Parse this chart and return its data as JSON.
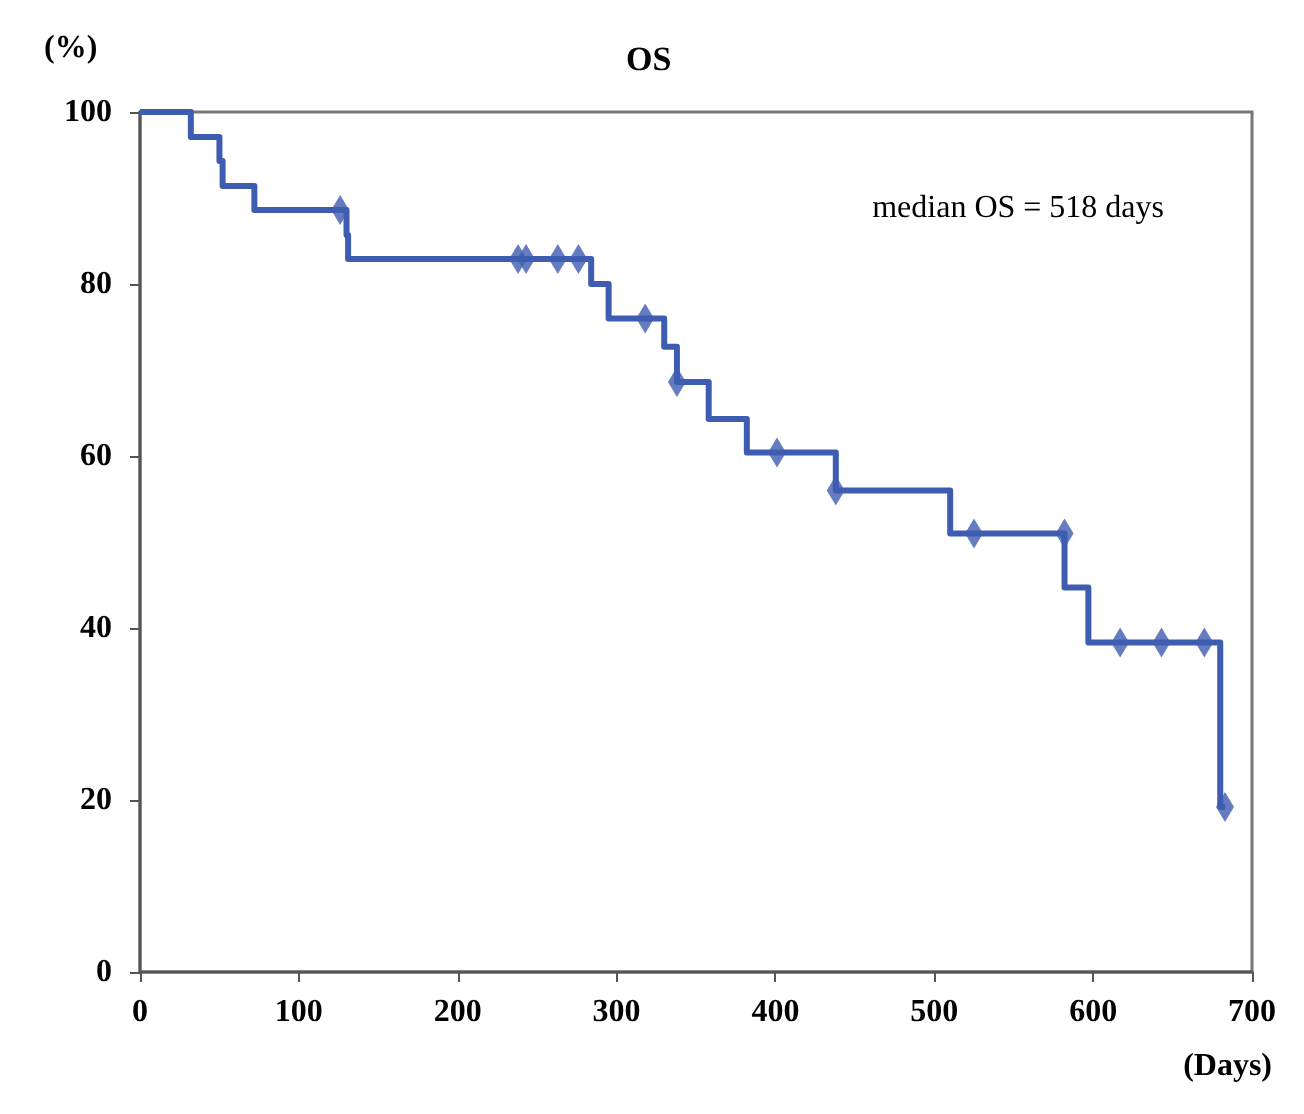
{
  "chart_data": {
    "type": "step",
    "title": "OS",
    "ylabel": "(%)",
    "xlabel": "(Days)",
    "annotations": [
      "median OS = 518 days"
    ],
    "xlim": [
      0,
      700
    ],
    "xticks": [
      0,
      100,
      200,
      300,
      400,
      500,
      600,
      700
    ],
    "ylim": [
      0,
      100
    ],
    "yticks": [
      0,
      20,
      40,
      60,
      80,
      100
    ],
    "grid": false,
    "series": [
      {
        "color": "#3f5db0",
        "marker": "none",
        "x": [
          0,
          32,
          50,
          52,
          72,
          130,
          131,
          284,
          295,
          330,
          338,
          358,
          382,
          438,
          510,
          582,
          597,
          680,
          683
        ],
        "values": [
          100,
          97.1,
          94.3,
          91.4,
          88.6,
          85.7,
          82.9,
          80,
          76,
          72.7,
          68.6,
          64.3,
          60.4,
          56,
          51,
          44.7,
          38.3,
          19.2,
          19.2
        ]
      },
      {
        "type": "scatter",
        "color": "#3f5db0",
        "marker": "diamond",
        "x": [
          126,
          238,
          243,
          263,
          276,
          318,
          338,
          401,
          438,
          525,
          582,
          617,
          643,
          670,
          683
        ],
        "values": [
          88.6,
          82.9,
          82.9,
          82.9,
          82.9,
          76,
          68.6,
          60.4,
          56,
          51,
          51,
          38.3,
          38.3,
          38.3,
          19.2
        ]
      }
    ]
  }
}
